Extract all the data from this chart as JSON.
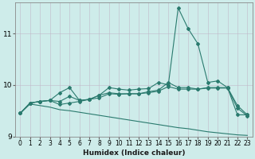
{
  "xlabel": "Humidex (Indice chaleur)",
  "xlim": [
    -0.5,
    23.5
  ],
  "ylim": [
    9.0,
    11.6
  ],
  "yticks": [
    9,
    10,
    11
  ],
  "xticks": [
    0,
    1,
    2,
    3,
    4,
    5,
    6,
    7,
    8,
    9,
    10,
    11,
    12,
    13,
    14,
    15,
    16,
    17,
    18,
    19,
    20,
    21,
    22,
    23
  ],
  "bg_color": "#ceecea",
  "line_color": "#2a7a6e",
  "line1_x": [
    0,
    1,
    2,
    3,
    4,
    5,
    6,
    7,
    8,
    9,
    10,
    11,
    12,
    13,
    14,
    15,
    16,
    17,
    18,
    19,
    20,
    21,
    22,
    23
  ],
  "line1_y": [
    9.45,
    9.65,
    9.68,
    9.7,
    9.85,
    9.95,
    9.7,
    9.72,
    9.8,
    9.95,
    9.92,
    9.9,
    9.92,
    9.93,
    10.05,
    10.0,
    11.5,
    11.1,
    10.8,
    10.05,
    10.08,
    9.95,
    9.42,
    9.42
  ],
  "line2_x": [
    0,
    1,
    2,
    3,
    4,
    5,
    6,
    7,
    8,
    9,
    10,
    11,
    12,
    13,
    14,
    15,
    16,
    17,
    18,
    19,
    20,
    21,
    22,
    23
  ],
  "line2_y": [
    9.45,
    9.65,
    9.68,
    9.7,
    9.68,
    9.78,
    9.7,
    9.72,
    9.8,
    9.85,
    9.83,
    9.83,
    9.83,
    9.87,
    9.9,
    10.05,
    9.95,
    9.95,
    9.92,
    9.95,
    9.95,
    9.95,
    9.6,
    9.42
  ],
  "line3_x": [
    0,
    1,
    2,
    3,
    4,
    5,
    6,
    7,
    8,
    9,
    10,
    11,
    12,
    13,
    14,
    15,
    16,
    17,
    18,
    19,
    20,
    21,
    22,
    23
  ],
  "line3_y": [
    9.45,
    9.65,
    9.68,
    9.7,
    9.62,
    9.65,
    9.68,
    9.72,
    9.75,
    9.83,
    9.82,
    9.83,
    9.83,
    9.85,
    9.88,
    9.97,
    9.92,
    9.92,
    9.92,
    9.94,
    9.94,
    9.94,
    9.55,
    9.4
  ],
  "line4_x": [
    0,
    1,
    2,
    3,
    4,
    5,
    6,
    7,
    8,
    9,
    10,
    11,
    12,
    13,
    14,
    15,
    16,
    17,
    18,
    19,
    20,
    21,
    22,
    23
  ],
  "line4_y": [
    9.45,
    9.63,
    9.6,
    9.57,
    9.52,
    9.5,
    9.47,
    9.44,
    9.41,
    9.38,
    9.35,
    9.32,
    9.29,
    9.26,
    9.23,
    9.2,
    9.17,
    9.15,
    9.12,
    9.09,
    9.07,
    9.05,
    9.03,
    9.02
  ]
}
